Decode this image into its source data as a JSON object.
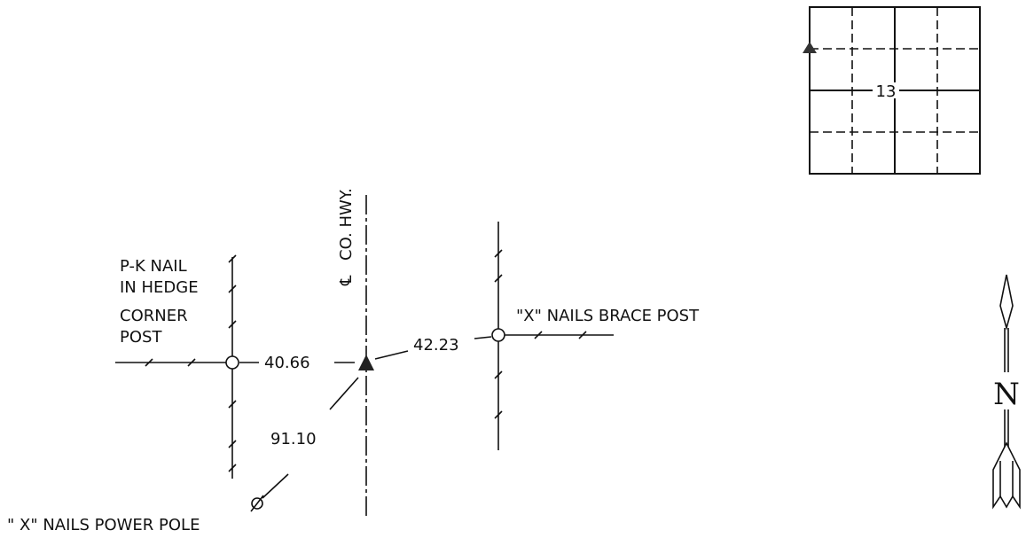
{
  "labels": {
    "pk_nail_line1": "P-K NAIL",
    "pk_nail_line2": "IN HEDGE",
    "pk_nail_line3": "CORNER",
    "pk_nail_line4": "POST",
    "brace_post": "\"X\" NAILS BRACE POST",
    "power_pole": "\" X\" NAILS POWER POLE",
    "highway": "CO. HWY.",
    "centerline_symbol": "℄"
  },
  "distances": {
    "to_pk_nail": "40.66",
    "to_brace_post": "42.23",
    "to_power_pole": "91.10"
  },
  "section_map": {
    "section_number": "13"
  },
  "north_arrow": {
    "letter": "N"
  },
  "colors": {
    "ink": "#111111",
    "background": "#ffffff"
  }
}
